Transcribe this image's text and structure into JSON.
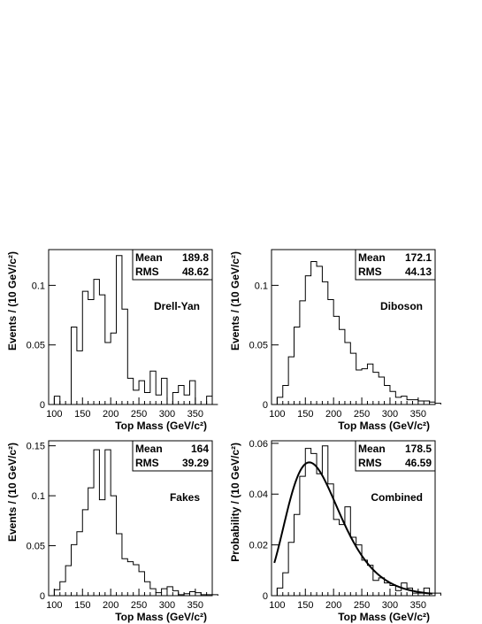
{
  "chart_data": [
    {
      "type": "histogram",
      "label": "Drell-Yan",
      "xlabel": "Top Mass (GeV/c²)",
      "ylabel": "Events / (10 GeV/c²)",
      "xlim": [
        90,
        380
      ],
      "ylim": [
        0,
        0.13
      ],
      "xticks": [
        100,
        150,
        200,
        250,
        300,
        350
      ],
      "yticks": [
        0,
        0.05,
        0.1
      ],
      "ytick_labels": [
        "0",
        "0.05",
        "0.1"
      ],
      "bin_width": 10,
      "bin_edges_start": 90,
      "values": [
        0,
        0.007,
        0,
        0,
        0.065,
        0.045,
        0.095,
        0.088,
        0.105,
        0.092,
        0.052,
        0.06,
        0.125,
        0.08,
        0.022,
        0.012,
        0.02,
        0.01,
        0.028,
        0.008,
        0.022,
        0,
        0.01,
        0.016,
        0.008,
        0.02,
        0,
        0,
        0.007,
        0
      ],
      "stats": {
        "mean_label": "Mean",
        "mean": "189.8",
        "rms_label": "RMS",
        "rms": "48.62"
      }
    },
    {
      "type": "histogram",
      "label": "Diboson",
      "xlabel": "Top Mass (GeV/c²)",
      "ylabel": "Events / (10 GeV/c²)",
      "xlim": [
        90,
        380
      ],
      "ylim": [
        0,
        0.13
      ],
      "xticks": [
        100,
        150,
        200,
        250,
        300,
        350
      ],
      "yticks": [
        0,
        0.05,
        0.1
      ],
      "ytick_labels": [
        "0",
        "0.05",
        "0.1"
      ],
      "bin_width": 10,
      "bin_edges_start": 90,
      "values": [
        0,
        0.006,
        0.016,
        0.04,
        0.065,
        0.087,
        0.108,
        0.12,
        0.116,
        0.103,
        0.088,
        0.074,
        0.063,
        0.052,
        0.043,
        0.029,
        0.03,
        0.034,
        0.027,
        0.023,
        0.016,
        0.011,
        0.006,
        0.007,
        0.004,
        0.004,
        0.003,
        0.003,
        0.002,
        0.001
      ],
      "stats": {
        "mean_label": "Mean",
        "mean": "172.1",
        "rms_label": "RMS",
        "rms": "44.13"
      }
    },
    {
      "type": "histogram",
      "label": "Fakes",
      "xlabel": "Top Mass (GeV/c²)",
      "ylabel": "Events / (10 GeV/c²)",
      "xlim": [
        90,
        380
      ],
      "ylim": [
        0,
        0.155
      ],
      "xticks": [
        100,
        150,
        200,
        250,
        300,
        350
      ],
      "yticks": [
        0,
        0.05,
        0.1,
        0.15
      ],
      "ytick_labels": [
        "0",
        "0.05",
        "0.1",
        "0.15"
      ],
      "bin_width": 10,
      "bin_edges_start": 90,
      "values": [
        0,
        0.006,
        0.014,
        0.03,
        0.051,
        0.064,
        0.086,
        0.108,
        0.146,
        0.096,
        0.146,
        0.1,
        0.062,
        0.037,
        0.034,
        0.031,
        0.024,
        0.014,
        0.007,
        0.003,
        0.007,
        0.009,
        0.005,
        0.001,
        0.002,
        0.004,
        0.003,
        0.001,
        0.001,
        0.001
      ],
      "stats": {
        "mean_label": "Mean",
        "mean": "164",
        "rms_label": "RMS",
        "rms": "39.29"
      }
    },
    {
      "type": "histogram",
      "label": "Combined",
      "xlabel": "Top Mass (GeV/c²)",
      "ylabel": "Probability / (10 GeV/c²)",
      "xlim": [
        90,
        380
      ],
      "ylim": [
        0,
        0.061
      ],
      "xticks": [
        100,
        150,
        200,
        250,
        300,
        350
      ],
      "yticks": [
        0,
        0.02,
        0.04,
        0.06
      ],
      "ytick_labels": [
        "0",
        "0.02",
        "0.04",
        "0.06"
      ],
      "bin_width": 10,
      "bin_edges_start": 90,
      "values": [
        0,
        0.003,
        0.009,
        0.021,
        0.032,
        0.047,
        0.058,
        0.056,
        0.048,
        0.059,
        0.044,
        0.03,
        0.028,
        0.035,
        0.023,
        0.02,
        0.014,
        0.012,
        0.006,
        0.007,
        0.005,
        0.004,
        0.002,
        0.005,
        0.003,
        0.001,
        0.001,
        0.003,
        0.001,
        0.001
      ],
      "fit_curve": true,
      "stats": {
        "mean_label": "Mean",
        "mean": "178.5",
        "rms_label": "RMS",
        "rms": "46.59"
      }
    }
  ]
}
